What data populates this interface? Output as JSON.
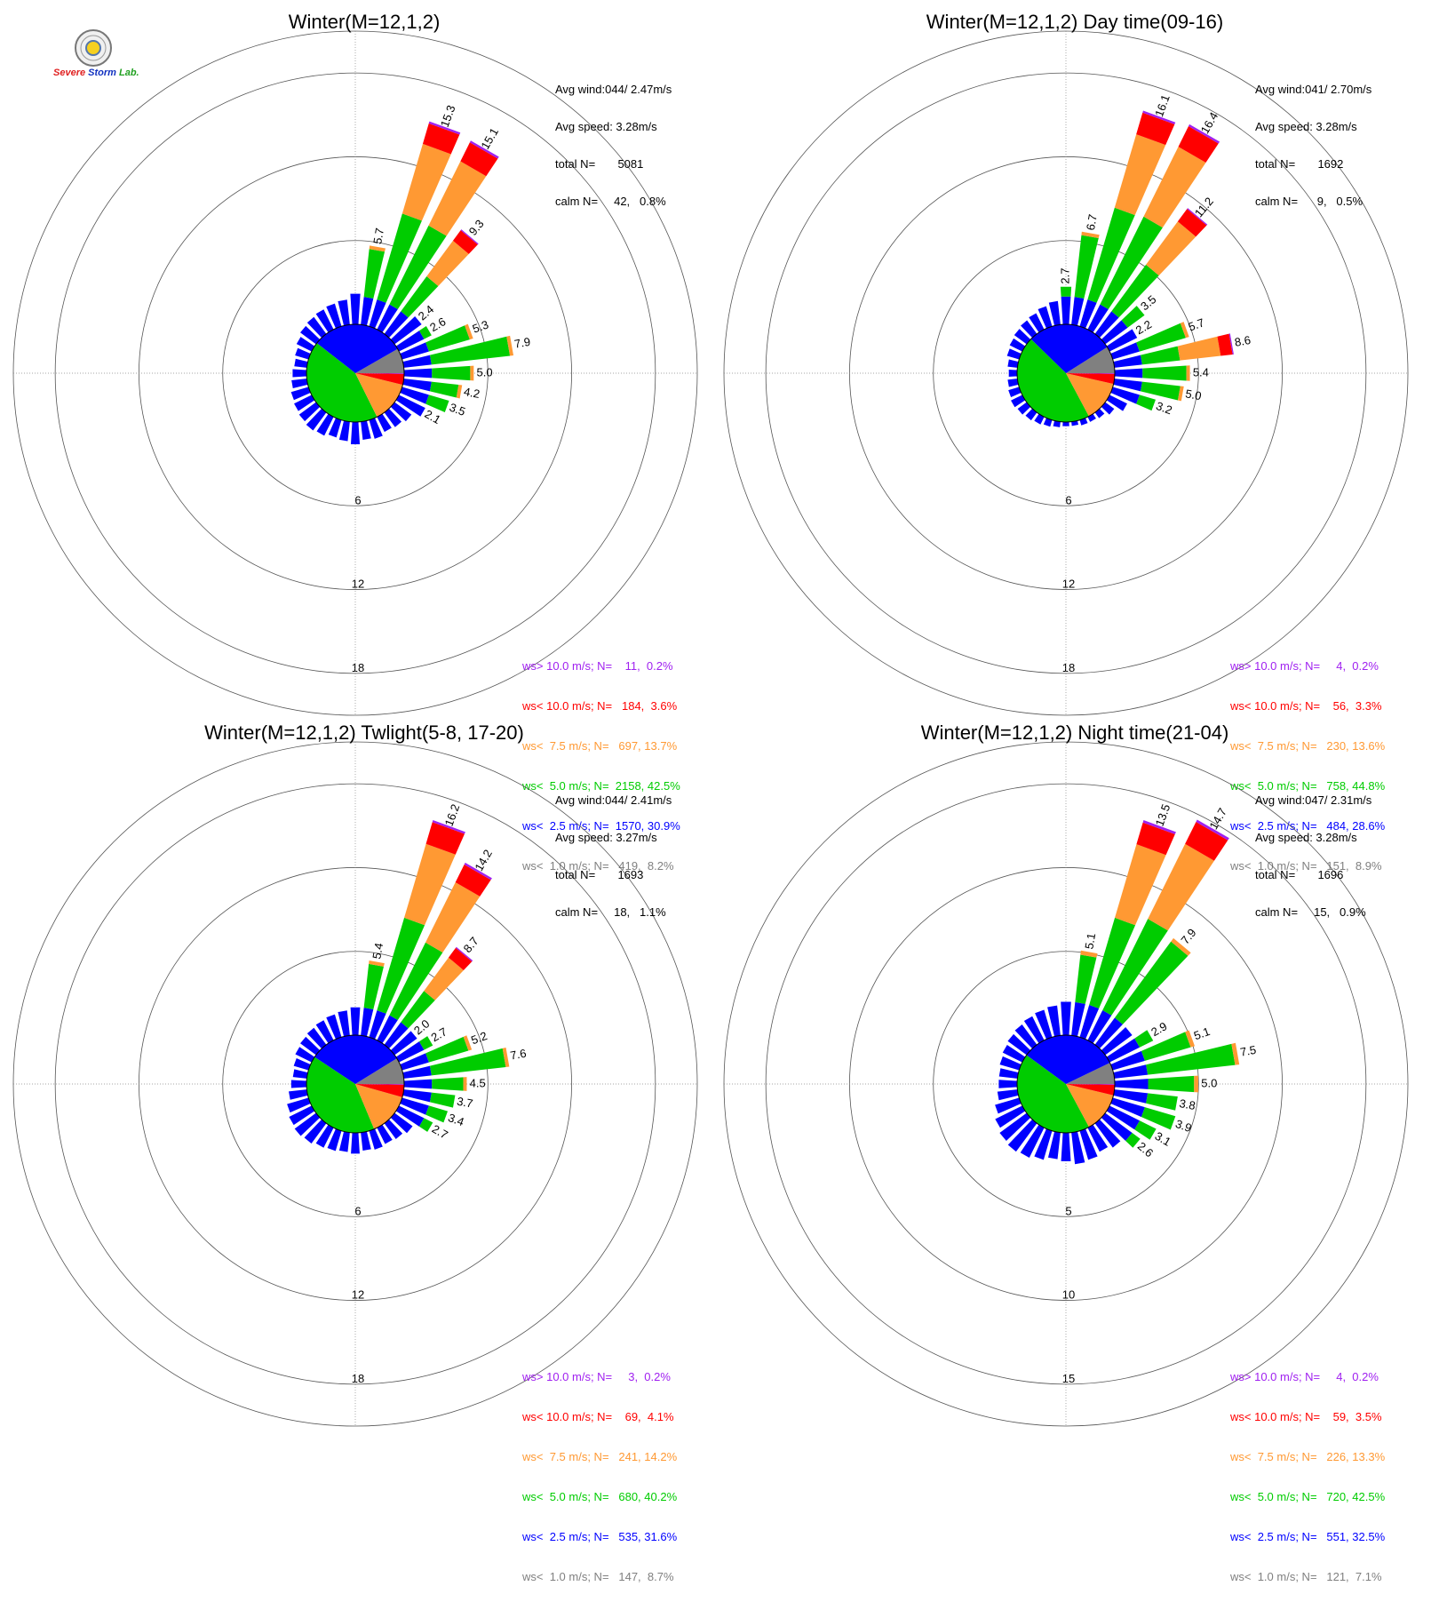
{
  "logo": {
    "text_severe": "Severe",
    "text_storm": "Storm",
    "text_lab": "Lab."
  },
  "colors": {
    "ws_gt10": "#a020f0",
    "ws_lt10": "#ff0000",
    "ws_lt7_5": "#ff9933",
    "ws_lt5": "#00cc00",
    "ws_lt2_5": "#0000ff",
    "ws_lt1": "#808080"
  },
  "panels": [
    {
      "title": "Winter(M=12,1,2)",
      "stats": [
        "Avg wind:044/ 2.47m/s",
        "Avg speed: 3.28m/s",
        "total N=       5081",
        "calm N=     42,   0.8%"
      ],
      "ring_labels": [
        "6",
        "12",
        "18"
      ],
      "legend": [
        {
          "text": "ws> 10.0 m/s; N=    11,  0.2%",
          "color": "#a020f0"
        },
        {
          "text": "ws< 10.0 m/s; N=   184,  3.6%",
          "color": "#ff0000"
        },
        {
          "text": "ws<  7.5 m/s; N=   697, 13.7%",
          "color": "#ff9933"
        },
        {
          "text": "ws<  5.0 m/s; N=  2158, 42.5%",
          "color": "#00cc00"
        },
        {
          "text": "ws<  2.5 m/s; N=  1570, 30.9%",
          "color": "#0000ff"
        },
        {
          "text": "ws<  1.0 m/s; N=   419,  8.2%",
          "color": "#808080"
        }
      ],
      "chart_data": {
        "type": "polar-bar",
        "direction_bins": 36,
        "rmax": 21,
        "ring_values": [
          6,
          12,
          18
        ],
        "pie_percent": [
          8.2,
          30.9,
          42.5,
          13.7,
          3.6,
          0.2
        ],
        "bars": [
          {
            "dir": 0,
            "total": 2.2
          },
          {
            "dir": 10,
            "total": 5.7,
            "label": "5.7"
          },
          {
            "dir": 20,
            "total": 15.3,
            "label": "15.3"
          },
          {
            "dir": 30,
            "total": 15.1,
            "label": "15.1"
          },
          {
            "dir": 40,
            "total": 9.3,
            "label": "9.3"
          },
          {
            "dir": 50,
            "total": 2.4,
            "label": "2.4"
          },
          {
            "dir": 60,
            "total": 2.6,
            "label": "2.6"
          },
          {
            "dir": 70,
            "total": 5.3,
            "label": "5.3"
          },
          {
            "dir": 80,
            "total": 7.9,
            "label": "7.9"
          },
          {
            "dir": 90,
            "total": 5.0,
            "label": "5.0"
          },
          {
            "dir": 100,
            "total": 4.2,
            "label": "4.2"
          },
          {
            "dir": 110,
            "total": 3.5,
            "label": "3.5"
          },
          {
            "dir": 120,
            "total": 2.1,
            "label": "2.1"
          },
          {
            "dir": 130,
            "total": 1.5
          },
          {
            "dir": 140,
            "total": 1.3
          },
          {
            "dir": 150,
            "total": 1.2
          },
          {
            "dir": 160,
            "total": 1.4
          },
          {
            "dir": 170,
            "total": 1.3
          },
          {
            "dir": 180,
            "total": 1.6
          },
          {
            "dir": 190,
            "total": 1.4
          },
          {
            "dir": 200,
            "total": 1.3
          },
          {
            "dir": 210,
            "total": 1.5
          },
          {
            "dir": 220,
            "total": 1.6
          },
          {
            "dir": 230,
            "total": 1.5
          },
          {
            "dir": 240,
            "total": 1.4
          },
          {
            "dir": 250,
            "total": 1.3
          },
          {
            "dir": 260,
            "total": 1.1
          },
          {
            "dir": 270,
            "total": 1.0
          },
          {
            "dir": 280,
            "total": 0.9
          },
          {
            "dir": 290,
            "total": 1.0
          },
          {
            "dir": 300,
            "total": 1.2
          },
          {
            "dir": 310,
            "total": 1.4
          },
          {
            "dir": 320,
            "total": 1.5
          },
          {
            "dir": 330,
            "total": 1.6
          },
          {
            "dir": 340,
            "total": 1.7
          },
          {
            "dir": 350,
            "total": 1.8
          }
        ]
      }
    },
    {
      "title": "Winter(M=12,1,2) Day time(09-16)",
      "stats": [
        "Avg wind:041/ 2.70m/s",
        "Avg speed: 3.28m/s",
        "total N=       1692",
        "calm N=      9,   0.5%"
      ],
      "ring_labels": [
        "6",
        "12",
        "18"
      ],
      "legend": [
        {
          "text": "ws> 10.0 m/s; N=     4,  0.2%",
          "color": "#a020f0"
        },
        {
          "text": "ws< 10.0 m/s; N=    56,  3.3%",
          "color": "#ff0000"
        },
        {
          "text": "ws<  7.5 m/s; N=   230, 13.6%",
          "color": "#ff9933"
        },
        {
          "text": "ws<  5.0 m/s; N=   758, 44.8%",
          "color": "#00cc00"
        },
        {
          "text": "ws<  2.5 m/s; N=   484, 28.6%",
          "color": "#0000ff"
        },
        {
          "text": "ws<  1.0 m/s; N=   151,  8.9%",
          "color": "#808080"
        }
      ],
      "chart_data": {
        "type": "polar-bar",
        "direction_bins": 36,
        "rmax": 21,
        "ring_values": [
          6,
          12,
          18
        ],
        "pie_percent": [
          8.9,
          28.6,
          44.8,
          13.6,
          3.3,
          0.2
        ],
        "bars": [
          {
            "dir": 0,
            "total": 2.7,
            "label": "2.7"
          },
          {
            "dir": 10,
            "total": 6.7,
            "label": "6.7"
          },
          {
            "dir": 20,
            "total": 16.1,
            "label": "16.1"
          },
          {
            "dir": 30,
            "total": 16.4,
            "label": "16.4"
          },
          {
            "dir": 40,
            "total": 11.2,
            "label": "11.2"
          },
          {
            "dir": 50,
            "total": 3.5,
            "label": "3.5"
          },
          {
            "dir": 60,
            "total": 2.2,
            "label": "2.2"
          },
          {
            "dir": 70,
            "total": 5.7,
            "label": "5.7"
          },
          {
            "dir": 80,
            "total": 8.6,
            "label": "8.6"
          },
          {
            "dir": 90,
            "total": 5.4,
            "label": "5.4"
          },
          {
            "dir": 100,
            "total": 5.0,
            "label": "5.0"
          },
          {
            "dir": 110,
            "total": 3.2,
            "label": "3.2"
          },
          {
            "dir": 120,
            "total": 1.4
          },
          {
            "dir": 130,
            "total": 0.8
          },
          {
            "dir": 140,
            "total": 0.5
          },
          {
            "dir": 150,
            "total": 0.4
          },
          {
            "dir": 160,
            "total": 0.4
          },
          {
            "dir": 170,
            "total": 0.3
          },
          {
            "dir": 180,
            "total": 0.3
          },
          {
            "dir": 190,
            "total": 0.4
          },
          {
            "dir": 200,
            "total": 0.5
          },
          {
            "dir": 210,
            "total": 0.6
          },
          {
            "dir": 220,
            "total": 0.7
          },
          {
            "dir": 230,
            "total": 0.8
          },
          {
            "dir": 240,
            "total": 0.9
          },
          {
            "dir": 250,
            "total": 0.8
          },
          {
            "dir": 260,
            "total": 0.7
          },
          {
            "dir": 270,
            "total": 0.6
          },
          {
            "dir": 280,
            "total": 0.7
          },
          {
            "dir": 290,
            "total": 0.9
          },
          {
            "dir": 300,
            "total": 1.0
          },
          {
            "dir": 310,
            "total": 1.1
          },
          {
            "dir": 320,
            "total": 1.2
          },
          {
            "dir": 330,
            "total": 1.3
          },
          {
            "dir": 340,
            "total": 1.5
          },
          {
            "dir": 350,
            "total": 1.7
          }
        ]
      }
    },
    {
      "title": "Winter(M=12,1,2) Twlight(5-8, 17-20)",
      "stats": [
        "Avg wind:044/ 2.41m/s",
        "Avg speed: 3.27m/s",
        "total N=       1693",
        "calm N=     18,   1.1%"
      ],
      "ring_labels": [
        "6",
        "12",
        "18"
      ],
      "legend": [
        {
          "text": "ws> 10.0 m/s; N=     3,  0.2%",
          "color": "#a020f0"
        },
        {
          "text": "ws< 10.0 m/s; N=    69,  4.1%",
          "color": "#ff0000"
        },
        {
          "text": "ws<  7.5 m/s; N=   241, 14.2%",
          "color": "#ff9933"
        },
        {
          "text": "ws<  5.0 m/s; N=   680, 40.2%",
          "color": "#00cc00"
        },
        {
          "text": "ws<  2.5 m/s; N=   535, 31.6%",
          "color": "#0000ff"
        },
        {
          "text": "ws<  1.0 m/s; N=   147,  8.7%",
          "color": "#808080"
        }
      ],
      "chart_data": {
        "type": "polar-bar",
        "direction_bins": 36,
        "rmax": 21,
        "ring_values": [
          6,
          12,
          18
        ],
        "pie_percent": [
          8.7,
          31.6,
          40.2,
          14.2,
          4.1,
          0.2
        ],
        "bars": [
          {
            "dir": 0,
            "total": 2.0
          },
          {
            "dir": 10,
            "total": 5.4,
            "label": "5.4"
          },
          {
            "dir": 20,
            "total": 16.2,
            "label": "16.2"
          },
          {
            "dir": 30,
            "total": 14.2,
            "label": "14.2"
          },
          {
            "dir": 40,
            "total": 8.7,
            "label": "8.7"
          },
          {
            "dir": 50,
            "total": 2.0,
            "label": "2.0"
          },
          {
            "dir": 60,
            "total": 2.7,
            "label": "2.7"
          },
          {
            "dir": 70,
            "total": 5.2,
            "label": "5.2"
          },
          {
            "dir": 80,
            "total": 7.6,
            "label": "7.6"
          },
          {
            "dir": 90,
            "total": 4.5,
            "label": "4.5"
          },
          {
            "dir": 100,
            "total": 3.7,
            "label": "3.7"
          },
          {
            "dir": 110,
            "total": 3.4,
            "label": "3.4"
          },
          {
            "dir": 120,
            "total": 2.7,
            "label": "2.7"
          },
          {
            "dir": 130,
            "total": 1.6
          },
          {
            "dir": 140,
            "total": 1.4
          },
          {
            "dir": 150,
            "total": 1.3
          },
          {
            "dir": 160,
            "total": 1.4
          },
          {
            "dir": 170,
            "total": 1.3
          },
          {
            "dir": 180,
            "total": 1.5
          },
          {
            "dir": 190,
            "total": 1.4
          },
          {
            "dir": 200,
            "total": 1.5
          },
          {
            "dir": 210,
            "total": 1.6
          },
          {
            "dir": 220,
            "total": 1.8
          },
          {
            "dir": 230,
            "total": 1.9
          },
          {
            "dir": 240,
            "total": 1.8
          },
          {
            "dir": 250,
            "total": 1.6
          },
          {
            "dir": 260,
            "total": 1.3
          },
          {
            "dir": 270,
            "total": 1.1
          },
          {
            "dir": 280,
            "total": 1.0
          },
          {
            "dir": 290,
            "total": 1.1
          },
          {
            "dir": 300,
            "total": 1.3
          },
          {
            "dir": 310,
            "total": 1.4
          },
          {
            "dir": 320,
            "total": 1.5
          },
          {
            "dir": 330,
            "total": 1.6
          },
          {
            "dir": 340,
            "total": 1.7
          },
          {
            "dir": 350,
            "total": 1.8
          }
        ]
      }
    },
    {
      "title": "Winter(M=12,1,2) Night time(21-04)",
      "stats": [
        "Avg wind:047/ 2.31m/s",
        "Avg speed: 3.28m/s",
        "total N=       1696",
        "calm N=     15,   0.9%"
      ],
      "ring_labels": [
        "5",
        "10",
        "15"
      ],
      "legend": [
        {
          "text": "ws> 10.0 m/s; N=     4,  0.2%",
          "color": "#a020f0"
        },
        {
          "text": "ws< 10.0 m/s; N=    59,  3.5%",
          "color": "#ff0000"
        },
        {
          "text": "ws<  7.5 m/s; N=   226, 13.3%",
          "color": "#ff9933"
        },
        {
          "text": "ws<  5.0 m/s; N=   720, 42.5%",
          "color": "#00cc00"
        },
        {
          "text": "ws<  2.5 m/s; N=   551, 32.5%",
          "color": "#0000ff"
        },
        {
          "text": "ws<  1.0 m/s; N=   121,  7.1%",
          "color": "#808080"
        }
      ],
      "chart_data": {
        "type": "polar-bar",
        "direction_bins": 36,
        "rmax": 17.5,
        "ring_values": [
          5,
          10,
          15
        ],
        "pie_percent": [
          7.1,
          32.5,
          42.5,
          13.3,
          3.5,
          0.2
        ],
        "bars": [
          {
            "dir": 0,
            "total": 2.0
          },
          {
            "dir": 10,
            "total": 5.1,
            "label": "5.1"
          },
          {
            "dir": 20,
            "total": 13.5,
            "label": "13.5"
          },
          {
            "dir": 30,
            "total": 14.7,
            "label": "14.7"
          },
          {
            "dir": 40,
            "total": 7.9,
            "label": "7.9"
          },
          {
            "dir": 50,
            "total": 2.0
          },
          {
            "dir": 60,
            "total": 2.9,
            "label": "2.9"
          },
          {
            "dir": 70,
            "total": 5.1,
            "label": "5.1"
          },
          {
            "dir": 80,
            "total": 7.5,
            "label": "7.5"
          },
          {
            "dir": 90,
            "total": 5.0,
            "label": "5.0"
          },
          {
            "dir": 100,
            "total": 3.8,
            "label": "3.8"
          },
          {
            "dir": 110,
            "total": 3.9,
            "label": "3.9"
          },
          {
            "dir": 120,
            "total": 3.1,
            "label": "3.1"
          },
          {
            "dir": 130,
            "total": 2.6,
            "label": "2.6"
          },
          {
            "dir": 140,
            "total": 1.8
          },
          {
            "dir": 150,
            "total": 1.6
          },
          {
            "dir": 160,
            "total": 1.8
          },
          {
            "dir": 170,
            "total": 1.9
          },
          {
            "dir": 180,
            "total": 1.7
          },
          {
            "dir": 190,
            "total": 1.6
          },
          {
            "dir": 200,
            "total": 1.8
          },
          {
            "dir": 210,
            "total": 2.0
          },
          {
            "dir": 220,
            "total": 2.1
          },
          {
            "dir": 230,
            "total": 2.0
          },
          {
            "dir": 240,
            "total": 1.8
          },
          {
            "dir": 250,
            "total": 1.5
          },
          {
            "dir": 260,
            "total": 1.2
          },
          {
            "dir": 270,
            "total": 1.1
          },
          {
            "dir": 280,
            "total": 1.1
          },
          {
            "dir": 290,
            "total": 1.2
          },
          {
            "dir": 300,
            "total": 1.3
          },
          {
            "dir": 310,
            "total": 1.4
          },
          {
            "dir": 320,
            "total": 1.5
          },
          {
            "dir": 330,
            "total": 1.6
          },
          {
            "dir": 340,
            "total": 1.7
          },
          {
            "dir": 350,
            "total": 1.8
          }
        ]
      }
    }
  ]
}
